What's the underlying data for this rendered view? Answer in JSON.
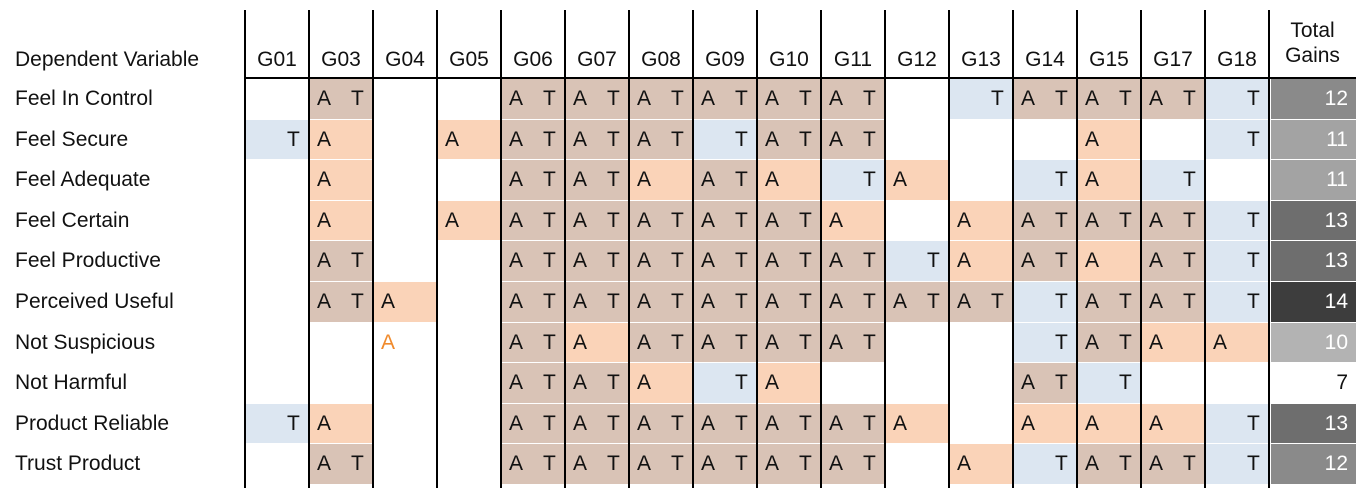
{
  "chart_data": {
    "type": "table",
    "headers": {
      "variable": "Dependent Variable",
      "groups": [
        "G01",
        "G03",
        "G04",
        "G05",
        "G06",
        "G07",
        "G08",
        "G09",
        "G10",
        "G11",
        "G12",
        "G13",
        "G14",
        "G15",
        "G17",
        "G18"
      ],
      "total": "Total Gains"
    },
    "legend_codes": {
      "A": "A",
      "T": "T"
    },
    "colors": {
      "both": "#d9c3b6",
      "a_only": "#fad3b8",
      "t_only": "#dce6f1",
      "a_text_highlight": "#f08a2c"
    },
    "rows": [
      {
        "label": "Feel In Control",
        "cells": [
          "",
          "AT",
          "",
          "",
          "AT",
          "AT",
          "AT",
          "AT",
          "AT",
          "AT",
          "",
          "T",
          "AT",
          "AT",
          "AT",
          "T"
        ],
        "total": 12
      },
      {
        "label": "Feel Secure",
        "cells": [
          "T",
          "A",
          "",
          "A",
          "AT",
          "AT",
          "AT",
          "T",
          "AT",
          "AT",
          "",
          "",
          "",
          "A",
          "",
          "T"
        ],
        "total": 11
      },
      {
        "label": "Feel Adequate",
        "cells": [
          "",
          "A",
          "",
          "",
          "AT",
          "AT",
          "A",
          "AT",
          "A",
          "T",
          "A",
          "",
          "T",
          "A",
          "T",
          ""
        ],
        "total": 11
      },
      {
        "label": "Feel Certain",
        "cells": [
          "",
          "A",
          "",
          "A",
          "AT",
          "AT",
          "AT",
          "AT",
          "AT",
          "A",
          "",
          "A",
          "AT",
          "AT",
          "AT",
          "T"
        ],
        "total": 13
      },
      {
        "label": "Feel Productive",
        "cells": [
          "",
          "AT",
          "",
          "",
          "AT",
          "AT",
          "AT",
          "AT",
          "AT",
          "AT",
          "T",
          "A",
          "AT",
          "A",
          "AT",
          "T"
        ],
        "total": 13
      },
      {
        "label": "Perceived Useful",
        "cells": [
          "",
          "AT",
          "A",
          "",
          "AT",
          "AT",
          "AT",
          "AT",
          "AT",
          "AT",
          "AT",
          "AT",
          "T",
          "AT",
          "AT",
          "T"
        ],
        "total": 14
      },
      {
        "label": "Not Suspicious",
        "cells": [
          "",
          "",
          "a",
          "",
          "AT",
          "A",
          "AT",
          "AT",
          "AT",
          "AT",
          "",
          "",
          "T",
          "AT",
          "A",
          "A"
        ],
        "total": 10
      },
      {
        "label": "Not Harmful",
        "cells": [
          "",
          "",
          "",
          "",
          "AT",
          "AT",
          "A",
          "T",
          "A",
          "",
          "",
          "",
          "AT",
          "T",
          "",
          ""
        ],
        "total": 7
      },
      {
        "label": "Product Reliable",
        "cells": [
          "T",
          "A",
          "",
          "",
          "AT",
          "AT",
          "AT",
          "AT",
          "AT",
          "AT",
          "A",
          "",
          "A",
          "A",
          "A",
          "T"
        ],
        "total": 13
      },
      {
        "label": "Trust Product",
        "cells": [
          "",
          "AT",
          "",
          "",
          "AT",
          "AT",
          "AT",
          "AT",
          "AT",
          "AT",
          "",
          "A",
          "T",
          "AT",
          "AT",
          "T"
        ],
        "total": 12
      }
    ],
    "total_shades": {
      "7": "#ffffff",
      "10": "#b3b3b3",
      "11": "#a3a3a3",
      "12": "#8a8a8a",
      "13": "#6e6e6e",
      "14": "#3d3d3d"
    }
  }
}
